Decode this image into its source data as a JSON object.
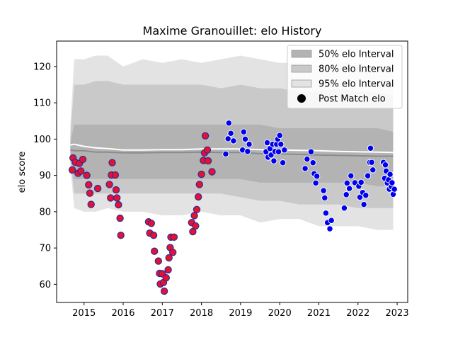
{
  "chart_data": {
    "type": "scatter",
    "title": "Maxime Granouillet: elo History",
    "xlabel": "",
    "ylabel": "elo score",
    "xlim": [
      2014.3,
      2023.27
    ],
    "ylim": [
      55,
      127
    ],
    "xticks": [
      2015,
      2016,
      2017,
      2018,
      2019,
      2020,
      2021,
      2022,
      2023
    ],
    "yticks": [
      60,
      70,
      80,
      90,
      100,
      110,
      120
    ],
    "grid": false,
    "legend_position": "top-right",
    "legend": [
      {
        "label": "50% elo Interval",
        "kind": "band",
        "color": "#b3b3b3"
      },
      {
        "label": "80% elo Interval",
        "kind": "band",
        "color": "#c9c9c9"
      },
      {
        "label": "95% elo Interval",
        "kind": "band",
        "color": "#e3e3e3"
      },
      {
        "label": "Post Match elo",
        "kind": "marker",
        "color": "#000000"
      }
    ],
    "colors": {
      "band_50": "#b3b3b3",
      "band_80": "#c9c9c9",
      "band_95": "#e3e3e3",
      "median_line": "#8c8c8c",
      "mean_line": "#ffffff",
      "point_red_fill": "#e8112d",
      "point_red_edge": "#2c2c9a",
      "point_blue_fill": "#0000ee",
      "point_blue_edge": "#ffffff"
    },
    "bands": {
      "x": [
        2014.65,
        2014.75,
        2015.0,
        2015.3,
        2015.6,
        2016.0,
        2016.5,
        2017.0,
        2017.5,
        2018.0,
        2018.5,
        2019.0,
        2019.5,
        2020.0,
        2020.5,
        2021.0,
        2021.5,
        2022.0,
        2022.5,
        2022.9
      ],
      "p95_upper": [
        104,
        122,
        122,
        123,
        123,
        120,
        122,
        121,
        122,
        121,
        122,
        123,
        122,
        121,
        121,
        120,
        121,
        121,
        120,
        120
      ],
      "p95_lower": [
        92,
        81,
        80,
        80,
        81,
        80,
        80,
        79,
        79,
        80,
        79,
        79,
        77,
        78,
        78,
        76,
        76,
        76,
        75,
        75
      ],
      "p80_upper": [
        101,
        115,
        115,
        116,
        116,
        115,
        115,
        115,
        115,
        115,
        114,
        115,
        114,
        114,
        113,
        113,
        114,
        113,
        113,
        112
      ],
      "p80_lower": [
        94,
        85,
        85,
        85,
        85,
        85,
        85,
        85,
        85,
        85,
        85,
        84,
        83,
        83,
        82,
        82,
        82,
        81,
        81,
        81
      ],
      "p50_upper": [
        99,
        104,
        104,
        104,
        104,
        104,
        104,
        104,
        104,
        104,
        104,
        104,
        104,
        103,
        103,
        103,
        103,
        103,
        103,
        102
      ],
      "p50_lower": [
        95,
        89,
        89,
        89,
        89,
        89,
        89,
        89,
        89,
        89,
        89,
        89,
        88,
        88,
        88,
        88,
        88,
        88,
        87,
        87
      ],
      "median": [
        97,
        96.8,
        96.8,
        96.4,
        96.4,
        96.2,
        96.2,
        96.3,
        96.3,
        96.4,
        96.3,
        96.3,
        96.0,
        95.9,
        95.8,
        95.6,
        95.5,
        95.4,
        95.3,
        95.3
      ],
      "mean": [
        98.4,
        98.6,
        98.0,
        97.6,
        97.4,
        97.0,
        97.0,
        97.1,
        97.1,
        97.3,
        97.3,
        97.3,
        97.1,
        97.0,
        96.9,
        96.8,
        96.6,
        96.5,
        96.4,
        96.3
      ]
    },
    "series": [
      {
        "name": "Post Match elo",
        "style": "red",
        "points": [
          [
            2014.7,
            91.5
          ],
          [
            2014.72,
            94.8
          ],
          [
            2014.78,
            93.6
          ],
          [
            2014.85,
            90.6
          ],
          [
            2014.88,
            93.3
          ],
          [
            2014.92,
            91.2
          ],
          [
            2014.97,
            94.4
          ],
          [
            2015.07,
            90.0
          ],
          [
            2015.12,
            87.4
          ],
          [
            2015.15,
            85.1
          ],
          [
            2015.18,
            82.0
          ],
          [
            2015.35,
            86.4
          ],
          [
            2015.65,
            87.5
          ],
          [
            2015.68,
            83.8
          ],
          [
            2015.7,
            90.1
          ],
          [
            2015.72,
            93.5
          ],
          [
            2015.8,
            90.1
          ],
          [
            2015.82,
            86.0
          ],
          [
            2015.84,
            83.8
          ],
          [
            2015.88,
            81.9
          ],
          [
            2015.92,
            78.2
          ],
          [
            2015.94,
            73.5
          ],
          [
            2016.65,
            77.2
          ],
          [
            2016.68,
            74.1
          ],
          [
            2016.72,
            76.8
          ],
          [
            2016.78,
            73.5
          ],
          [
            2016.8,
            69.1
          ],
          [
            2016.9,
            66.4
          ],
          [
            2016.93,
            63.0
          ],
          [
            2016.95,
            60.1
          ],
          [
            2017.0,
            62.9
          ],
          [
            2017.03,
            60.5
          ],
          [
            2017.05,
            58.1
          ],
          [
            2017.1,
            61.8
          ],
          [
            2017.15,
            64.0
          ],
          [
            2017.17,
            67.3
          ],
          [
            2017.2,
            70.1
          ],
          [
            2017.22,
            73.0
          ],
          [
            2017.27,
            68.8
          ],
          [
            2017.3,
            73.0
          ],
          [
            2017.75,
            77.0
          ],
          [
            2017.78,
            74.5
          ],
          [
            2017.82,
            78.9
          ],
          [
            2017.85,
            76.1
          ],
          [
            2017.88,
            80.6
          ],
          [
            2017.92,
            84.1
          ],
          [
            2017.95,
            87.5
          ],
          [
            2018.0,
            90.3
          ],
          [
            2018.05,
            94.1
          ],
          [
            2018.08,
            96.2
          ],
          [
            2018.1,
            100.9
          ],
          [
            2018.15,
            97.0
          ],
          [
            2018.17,
            94.0
          ],
          [
            2018.27,
            91.0
          ]
        ]
      },
      {
        "name": "Post Match elo",
        "style": "blue",
        "points": [
          [
            2018.62,
            95.9
          ],
          [
            2018.68,
            100.1
          ],
          [
            2018.7,
            104.4
          ],
          [
            2018.75,
            101.6
          ],
          [
            2018.82,
            99.5
          ],
          [
            2019.05,
            97.0
          ],
          [
            2019.08,
            102.0
          ],
          [
            2019.12,
            100.0
          ],
          [
            2019.18,
            96.6
          ],
          [
            2019.22,
            98.6
          ],
          [
            2019.65,
            96.5
          ],
          [
            2019.68,
            99.0
          ],
          [
            2019.7,
            95.0
          ],
          [
            2019.75,
            97.4
          ],
          [
            2019.78,
            95.6
          ],
          [
            2019.82,
            98.6
          ],
          [
            2019.85,
            94.0
          ],
          [
            2019.88,
            96.6
          ],
          [
            2019.92,
            98.6
          ],
          [
            2019.95,
            100.0
          ],
          [
            2019.97,
            96.5
          ],
          [
            2020.0,
            101.0
          ],
          [
            2020.03,
            98.6
          ],
          [
            2020.08,
            93.5
          ],
          [
            2020.12,
            97.0
          ],
          [
            2020.65,
            91.9
          ],
          [
            2020.7,
            94.5
          ],
          [
            2020.8,
            96.5
          ],
          [
            2020.85,
            93.5
          ],
          [
            2020.88,
            90.5
          ],
          [
            2020.92,
            87.9
          ],
          [
            2020.95,
            89.8
          ],
          [
            2021.12,
            85.8
          ],
          [
            2021.15,
            83.8
          ],
          [
            2021.18,
            79.6
          ],
          [
            2021.22,
            77.0
          ],
          [
            2021.28,
            75.3
          ],
          [
            2021.32,
            77.6
          ],
          [
            2021.65,
            81.0
          ],
          [
            2021.7,
            84.7
          ],
          [
            2021.72,
            87.9
          ],
          [
            2021.78,
            86.4
          ],
          [
            2021.82,
            89.9
          ],
          [
            2021.92,
            88.0
          ],
          [
            2022.02,
            87.0
          ],
          [
            2022.05,
            84.0
          ],
          [
            2022.08,
            88.1
          ],
          [
            2022.12,
            85.3
          ],
          [
            2022.15,
            82.0
          ],
          [
            2022.2,
            84.5
          ],
          [
            2022.25,
            89.9
          ],
          [
            2022.3,
            93.6
          ],
          [
            2022.32,
            97.5
          ],
          [
            2022.35,
            93.6
          ],
          [
            2022.38,
            91.5
          ],
          [
            2022.65,
            93.6
          ],
          [
            2022.68,
            89.2
          ],
          [
            2022.7,
            92.9
          ],
          [
            2022.72,
            91.2
          ],
          [
            2022.75,
            87.9
          ],
          [
            2022.78,
            88.8
          ],
          [
            2022.8,
            86.2
          ],
          [
            2022.82,
            90.3
          ],
          [
            2022.85,
            86.9
          ],
          [
            2022.87,
            88.0
          ],
          [
            2022.9,
            84.8
          ],
          [
            2022.93,
            86.2
          ]
        ]
      }
    ]
  }
}
